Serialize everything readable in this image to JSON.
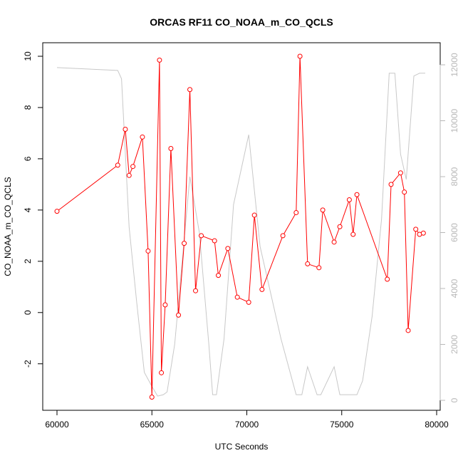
{
  "chart_data": {
    "type": "line",
    "title": "ORCAS RF11 CO_NOAA_m_CO_QCLS",
    "xlabel": "UTC Seconds",
    "ylabel": "CO_NOAA_m_CO_QCLS",
    "xlim": [
      60000,
      80000
    ],
    "ylim": [
      -3.5,
      10.3
    ],
    "y2lim": [
      -300,
      13000
    ],
    "x_ticks": [
      60000,
      65000,
      70000,
      75000,
      80000
    ],
    "y_ticks": [
      -2,
      0,
      2,
      4,
      6,
      8,
      10
    ],
    "y2_ticks": [
      0,
      2000,
      4000,
      6000,
      8000,
      10000,
      12000
    ],
    "grid": false,
    "series": [
      {
        "axis": "left",
        "color": "#ff0000",
        "marker": "open-circle",
        "x": [
          60000,
          63200,
          63600,
          63800,
          64000,
          64500,
          64800,
          65000,
          65400,
          65500,
          65700,
          66000,
          66400,
          66700,
          67000,
          67300,
          67600,
          68300,
          68500,
          69000,
          69500,
          70100,
          70400,
          70800,
          71900,
          72600,
          72800,
          73200,
          73800,
          74000,
          74600,
          74900,
          75400,
          75600,
          75800,
          77400,
          77600,
          78100,
          78300,
          78500,
          78900,
          79100,
          79300
        ],
        "y": [
          3.95,
          5.75,
          7.15,
          5.35,
          5.7,
          6.85,
          2.4,
          -3.3,
          9.85,
          -2.35,
          0.3,
          6.4,
          -0.1,
          2.7,
          8.7,
          0.85,
          3.0,
          2.8,
          1.45,
          2.5,
          0.6,
          0.4,
          3.8,
          0.9,
          3.0,
          3.9,
          10.0,
          1.9,
          1.75,
          4.0,
          2.75,
          3.35,
          4.4,
          3.05,
          4.6,
          1.3,
          5.0,
          5.45,
          4.7,
          -0.7,
          3.25,
          3.05,
          3.1
        ]
      },
      {
        "axis": "right",
        "color": "#c8c8c8",
        "marker": "none",
        "x": [
          60000,
          63200,
          63400,
          63800,
          64200,
          64600,
          65000,
          65300,
          65600,
          65800,
          66200,
          66600,
          67000,
          67500,
          68000,
          68200,
          68400,
          68800,
          69300,
          70100,
          70700,
          71200,
          71800,
          72600,
          72900,
          73200,
          73700,
          73900,
          74600,
          74900,
          75500,
          75800,
          76100,
          76600,
          77100,
          77500,
          77800,
          78100,
          78400,
          78800,
          79100,
          79400
        ],
        "y": [
          11900,
          11800,
          11500,
          6200,
          3500,
          1000,
          500,
          150,
          200,
          300,
          2000,
          5000,
          8000,
          6000,
          2000,
          200,
          200,
          2200,
          7000,
          9500,
          5500,
          4000,
          2200,
          200,
          200,
          1200,
          200,
          200,
          1200,
          200,
          200,
          200,
          700,
          3000,
          6500,
          11700,
          11700,
          8800,
          7900,
          11600,
          11700,
          11700
        ]
      }
    ]
  }
}
